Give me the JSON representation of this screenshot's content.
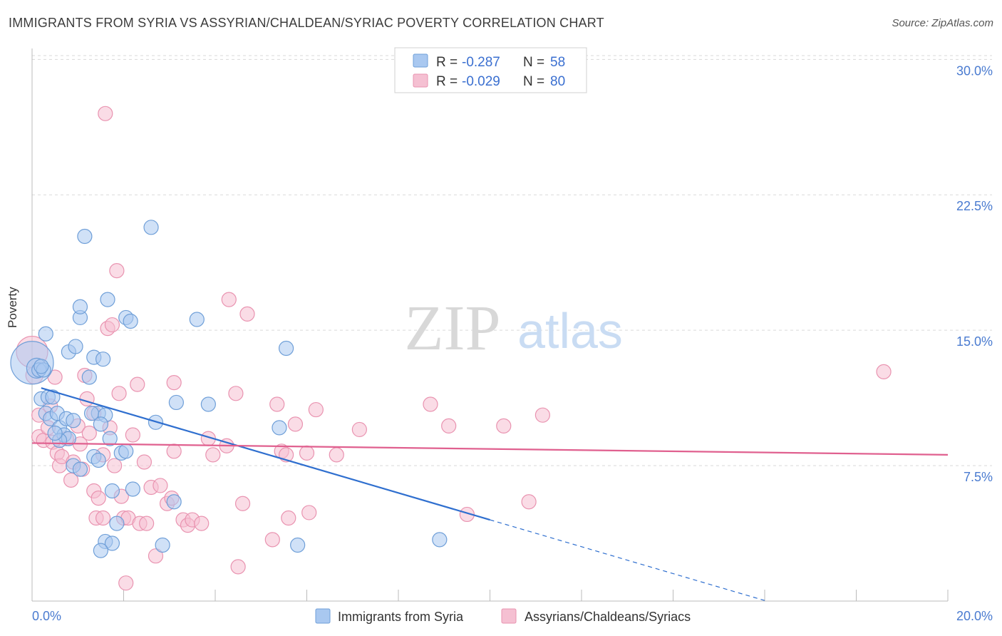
{
  "header": {
    "title": "IMMIGRANTS FROM SYRIA VS ASSYRIAN/CHALDEAN/SYRIAC POVERTY CORRELATION CHART",
    "source": "Source: ZipAtlas.com"
  },
  "watermark": {
    "zip": "ZIP",
    "atlas": "atlas"
  },
  "colors": {
    "blue_fill": "#a9c8f0",
    "blue_stroke": "#6f9fd8",
    "blue_line": "#2f6fcf",
    "pink_fill": "#f5c0d2",
    "pink_stroke": "#e993b0",
    "pink_line": "#e0608f",
    "axis_text": "#4a7bd0",
    "grid": "#d9d9d9"
  },
  "legend_top": [
    {
      "r_label": "R = ",
      "r_value": "-0.287",
      "n_label": "N = ",
      "n_value": "58"
    },
    {
      "r_label": "R = ",
      "r_value": "-0.029",
      "n_label": "N = ",
      "n_value": "80"
    }
  ],
  "chart_data": {
    "type": "scatter",
    "ylabel": "Poverty",
    "xlim": [
      0,
      20
    ],
    "ylim": [
      0,
      31
    ],
    "y_ticks": [
      7.5,
      15.0,
      22.5,
      30.0
    ],
    "y_tick_labels": [
      "7.5%",
      "15.0%",
      "22.5%",
      "30.0%"
    ],
    "x_tick_labels": [
      "0.0%",
      "20.0%"
    ],
    "grid": true,
    "legend_placement": "bottom",
    "series": [
      {
        "name": "Immigrants from Syria",
        "color": "blue",
        "trend": {
          "x0": 0.2,
          "y0": 11.8,
          "x1": 10.0,
          "y1": 4.5,
          "dash_to_x": 16.0
        },
        "points": [
          [
            0.0,
            13.2
          ],
          [
            0.1,
            12.9
          ],
          [
            0.15,
            12.8
          ],
          [
            0.25,
            12.8
          ],
          [
            0.2,
            11.2
          ],
          [
            0.3,
            10.4
          ],
          [
            0.35,
            11.3
          ],
          [
            0.45,
            11.3
          ],
          [
            0.4,
            10.1
          ],
          [
            0.55,
            10.4
          ],
          [
            0.6,
            9.6
          ],
          [
            0.7,
            9.2
          ],
          [
            0.75,
            10.1
          ],
          [
            0.8,
            9.0
          ],
          [
            0.9,
            7.5
          ],
          [
            0.3,
            14.8
          ],
          [
            0.8,
            13.8
          ],
          [
            0.95,
            14.1
          ],
          [
            1.05,
            15.7
          ],
          [
            1.05,
            16.3
          ],
          [
            1.15,
            20.2
          ],
          [
            1.25,
            12.4
          ],
          [
            1.35,
            13.5
          ],
          [
            1.45,
            10.4
          ],
          [
            1.35,
            8.0
          ],
          [
            1.45,
            7.8
          ],
          [
            1.55,
            13.4
          ],
          [
            1.65,
            16.7
          ],
          [
            1.7,
            9.0
          ],
          [
            1.75,
            6.1
          ],
          [
            1.6,
            3.3
          ],
          [
            1.75,
            3.2
          ],
          [
            1.5,
            2.8
          ],
          [
            1.85,
            4.3
          ],
          [
            1.95,
            8.2
          ],
          [
            2.05,
            15.7
          ],
          [
            2.15,
            15.5
          ],
          [
            2.2,
            6.2
          ],
          [
            2.6,
            20.7
          ],
          [
            2.7,
            9.9
          ],
          [
            2.85,
            3.1
          ],
          [
            3.1,
            5.5
          ],
          [
            3.15,
            11.0
          ],
          [
            3.6,
            15.6
          ],
          [
            3.85,
            10.9
          ],
          [
            5.4,
            9.6
          ],
          [
            5.55,
            14.0
          ],
          [
            5.8,
            3.1
          ],
          [
            8.9,
            3.4
          ],
          [
            1.3,
            10.4
          ],
          [
            0.6,
            8.9
          ],
          [
            0.9,
            10.0
          ],
          [
            1.05,
            7.3
          ],
          [
            1.6,
            10.3
          ],
          [
            0.2,
            13.0
          ],
          [
            1.5,
            9.8
          ],
          [
            2.05,
            8.3
          ],
          [
            0.5,
            9.3
          ]
        ],
        "sizes": [
          30,
          14,
          10,
          10,
          10,
          10,
          10,
          10,
          10,
          10,
          10,
          10,
          10,
          10,
          10,
          10,
          10,
          10,
          10,
          10,
          10,
          10,
          10,
          10,
          10,
          10,
          10,
          10,
          10,
          10,
          10,
          10,
          10,
          10,
          10,
          10,
          10,
          10,
          10,
          10,
          10,
          10,
          10,
          10,
          10,
          10,
          10,
          10,
          10,
          10,
          10,
          10,
          10,
          10,
          10,
          10,
          10,
          10
        ]
      },
      {
        "name": "Assyrians/Chaldeans/Syriacs",
        "color": "pink",
        "trend": {
          "x0": 0.0,
          "y0": 8.75,
          "x1": 20.0,
          "y1": 8.1
        },
        "points": [
          [
            0.0,
            13.8
          ],
          [
            0.05,
            12.5
          ],
          [
            0.15,
            10.3
          ],
          [
            0.15,
            9.1
          ],
          [
            0.25,
            8.9
          ],
          [
            0.35,
            9.6
          ],
          [
            0.4,
            10.8
          ],
          [
            0.45,
            8.8
          ],
          [
            0.55,
            8.2
          ],
          [
            0.6,
            7.5
          ],
          [
            0.65,
            8.0
          ],
          [
            0.75,
            9.0
          ],
          [
            0.85,
            6.7
          ],
          [
            0.9,
            7.7
          ],
          [
            1.0,
            9.7
          ],
          [
            1.05,
            8.7
          ],
          [
            1.1,
            7.3
          ],
          [
            1.15,
            12.5
          ],
          [
            1.2,
            11.2
          ],
          [
            1.25,
            9.3
          ],
          [
            1.35,
            10.4
          ],
          [
            1.35,
            6.1
          ],
          [
            1.4,
            4.6
          ],
          [
            1.45,
            5.7
          ],
          [
            1.55,
            8.1
          ],
          [
            1.6,
            27.0
          ],
          [
            1.65,
            15.1
          ],
          [
            1.7,
            9.6
          ],
          [
            1.75,
            15.3
          ],
          [
            1.8,
            7.5
          ],
          [
            1.85,
            18.3
          ],
          [
            1.9,
            11.5
          ],
          [
            1.95,
            5.8
          ],
          [
            2.0,
            4.6
          ],
          [
            2.05,
            1.0
          ],
          [
            2.1,
            4.6
          ],
          [
            2.2,
            9.2
          ],
          [
            2.3,
            12.0
          ],
          [
            2.35,
            4.3
          ],
          [
            2.45,
            7.7
          ],
          [
            2.5,
            4.3
          ],
          [
            2.6,
            6.3
          ],
          [
            2.7,
            2.5
          ],
          [
            2.8,
            6.4
          ],
          [
            2.95,
            5.4
          ],
          [
            3.05,
            5.7
          ],
          [
            3.1,
            12.1
          ],
          [
            3.3,
            4.5
          ],
          [
            3.4,
            4.2
          ],
          [
            3.5,
            4.5
          ],
          [
            3.7,
            4.3
          ],
          [
            3.85,
            9.0
          ],
          [
            3.95,
            8.1
          ],
          [
            4.25,
            8.6
          ],
          [
            4.3,
            16.7
          ],
          [
            4.45,
            11.5
          ],
          [
            4.5,
            1.9
          ],
          [
            4.6,
            5.4
          ],
          [
            4.7,
            15.9
          ],
          [
            5.25,
            3.4
          ],
          [
            5.35,
            10.9
          ],
          [
            5.45,
            8.3
          ],
          [
            5.55,
            8.1
          ],
          [
            5.6,
            4.6
          ],
          [
            5.75,
            9.8
          ],
          [
            6.0,
            8.2
          ],
          [
            6.05,
            4.9
          ],
          [
            6.2,
            10.6
          ],
          [
            6.65,
            8.1
          ],
          [
            7.15,
            9.5
          ],
          [
            8.7,
            10.9
          ],
          [
            9.1,
            9.7
          ],
          [
            9.5,
            4.8
          ],
          [
            10.3,
            9.7
          ],
          [
            10.85,
            5.5
          ],
          [
            11.15,
            10.3
          ],
          [
            18.6,
            12.7
          ],
          [
            0.5,
            12.4
          ],
          [
            1.55,
            4.6
          ],
          [
            3.1,
            8.3
          ]
        ],
        "sizes": [
          22,
          12,
          10,
          10,
          10,
          10,
          10,
          10,
          10,
          10,
          10,
          10,
          10,
          10,
          10,
          10,
          10,
          10,
          10,
          10,
          10,
          10,
          10,
          10,
          10,
          10,
          10,
          10,
          10,
          10,
          10,
          10,
          10,
          10,
          10,
          10,
          10,
          10,
          10,
          10,
          10,
          10,
          10,
          10,
          10,
          10,
          10,
          10,
          10,
          10,
          10,
          10,
          10,
          10,
          10,
          10,
          10,
          10,
          10,
          10,
          10,
          10,
          10,
          10,
          10,
          10,
          10,
          10,
          10,
          10,
          10,
          10,
          10,
          10,
          10,
          10,
          10,
          10,
          10,
          10
        ]
      }
    ]
  }
}
